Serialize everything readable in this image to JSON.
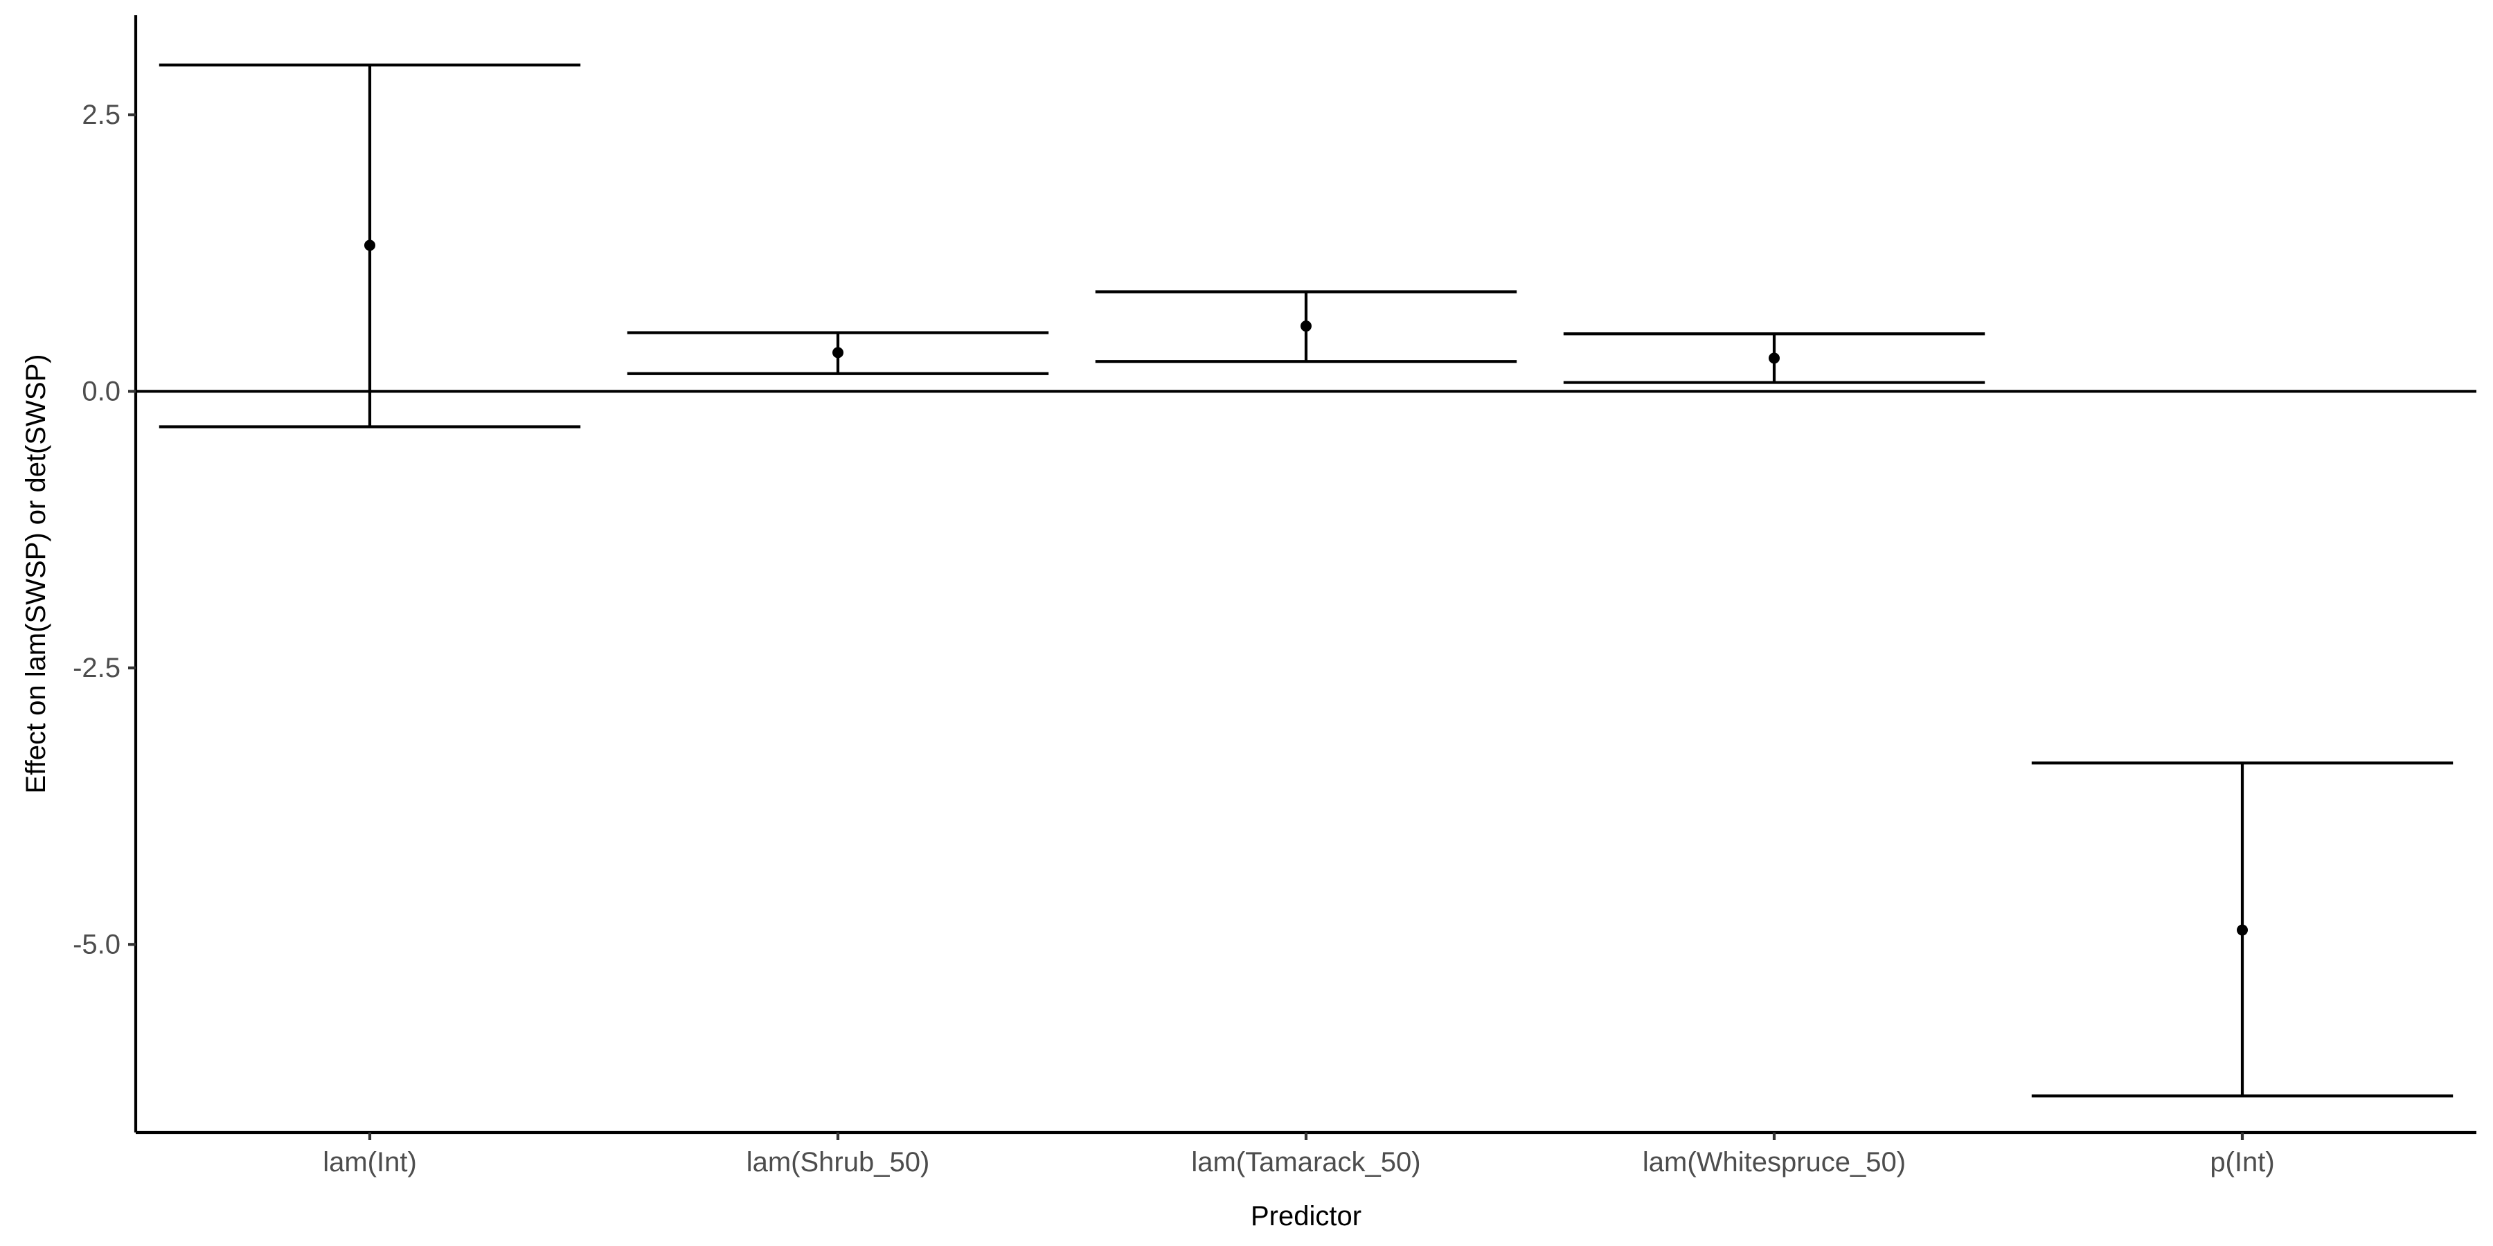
{
  "chart_data": {
    "type": "errorbar",
    "title": "",
    "xlabel": "Predictor",
    "ylabel": "Effect on lam(SWSP) or det(SWSP)",
    "categories": [
      "lam(Int)",
      "lam(Shrub_50)",
      "lam(Tamarack_50)",
      "lam(Whitespruce_50)",
      "p(Int)"
    ],
    "estimates": [
      1.32,
      0.35,
      0.59,
      0.3,
      -4.87
    ],
    "lower": [
      -0.32,
      0.16,
      0.27,
      0.08,
      -6.37
    ],
    "upper": [
      2.95,
      0.53,
      0.9,
      0.52,
      -3.36
    ],
    "ylim": [
      -6.7,
      3.4
    ],
    "yticks": [
      2.5,
      0.0,
      -2.5,
      -5.0
    ],
    "ytick_labels": [
      "2.5",
      "0.0",
      "-2.5",
      "-5.0"
    ],
    "reference_line": 0,
    "grid": false,
    "legend": "none",
    "colors": {
      "point": "#000000",
      "errorbar": "#000000",
      "axis": "#000000",
      "tick_text": "#4d4d4d",
      "background": "#ffffff"
    }
  }
}
